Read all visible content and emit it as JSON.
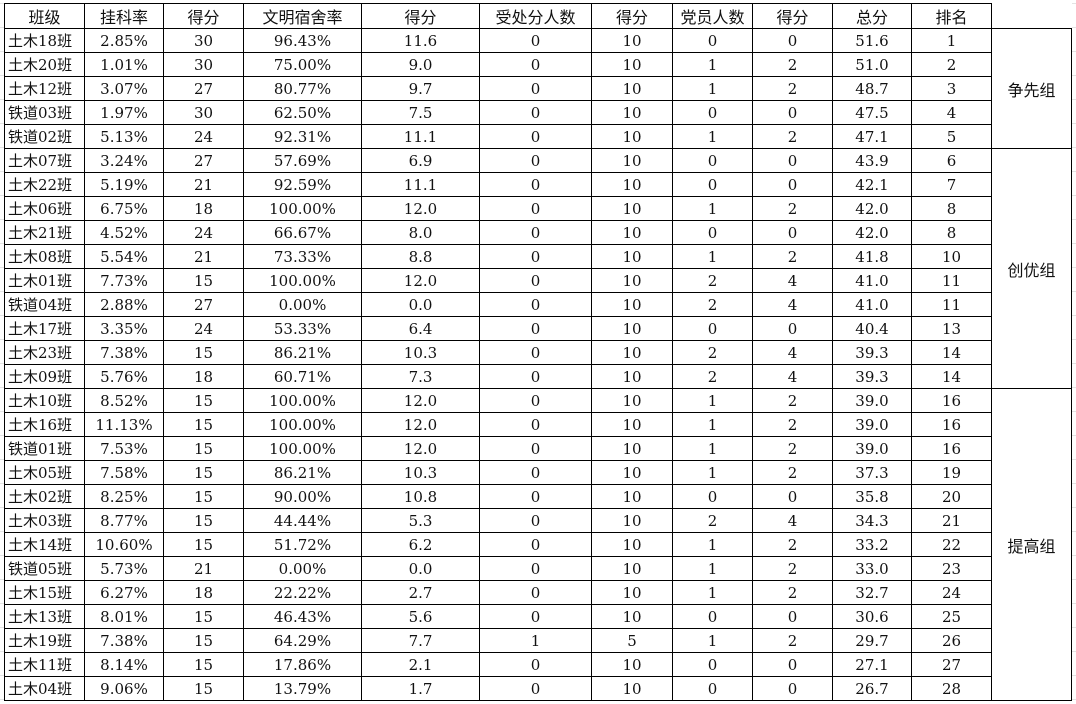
{
  "headers": [
    "班级",
    "挂科率",
    "得分",
    "文明宿舍率",
    "得分",
    "受处分人数",
    "得分",
    "党员人数",
    "得分",
    "总分",
    "排名"
  ],
  "rows": [
    [
      "土木18班",
      "2.85%",
      "30",
      "96.43%",
      "11.6",
      "0",
      "10",
      "0",
      "0",
      "51.6",
      "1"
    ],
    [
      "土木20班",
      "1.01%",
      "30",
      "75.00%",
      "9.0",
      "0",
      "10",
      "1",
      "2",
      "51.0",
      "2"
    ],
    [
      "土木12班",
      "3.07%",
      "27",
      "80.77%",
      "9.7",
      "0",
      "10",
      "1",
      "2",
      "48.7",
      "3"
    ],
    [
      "铁道03班",
      "1.97%",
      "30",
      "62.50%",
      "7.5",
      "0",
      "10",
      "0",
      "0",
      "47.5",
      "4"
    ],
    [
      "铁道02班",
      "5.13%",
      "24",
      "92.31%",
      "11.1",
      "0",
      "10",
      "1",
      "2",
      "47.1",
      "5"
    ],
    [
      "土木07班",
      "3.24%",
      "27",
      "57.69%",
      "6.9",
      "0",
      "10",
      "0",
      "0",
      "43.9",
      "6"
    ],
    [
      "土木22班",
      "5.19%",
      "21",
      "92.59%",
      "11.1",
      "0",
      "10",
      "0",
      "0",
      "42.1",
      "7"
    ],
    [
      "土木06班",
      "6.75%",
      "18",
      "100.00%",
      "12.0",
      "0",
      "10",
      "1",
      "2",
      "42.0",
      "8"
    ],
    [
      "土木21班",
      "4.52%",
      "24",
      "66.67%",
      "8.0",
      "0",
      "10",
      "0",
      "0",
      "42.0",
      "8"
    ],
    [
      "土木08班",
      "5.54%",
      "21",
      "73.33%",
      "8.8",
      "0",
      "10",
      "1",
      "2",
      "41.8",
      "10"
    ],
    [
      "土木01班",
      "7.73%",
      "15",
      "100.00%",
      "12.0",
      "0",
      "10",
      "2",
      "4",
      "41.0",
      "11"
    ],
    [
      "铁道04班",
      "2.88%",
      "27",
      "0.00%",
      "0.0",
      "0",
      "10",
      "2",
      "4",
      "41.0",
      "11"
    ],
    [
      "土木17班",
      "3.35%",
      "24",
      "53.33%",
      "6.4",
      "0",
      "10",
      "0",
      "0",
      "40.4",
      "13"
    ],
    [
      "土木23班",
      "7.38%",
      "15",
      "86.21%",
      "10.3",
      "0",
      "10",
      "2",
      "4",
      "39.3",
      "14"
    ],
    [
      "土木09班",
      "5.76%",
      "18",
      "60.71%",
      "7.3",
      "0",
      "10",
      "2",
      "4",
      "39.3",
      "14"
    ],
    [
      "土木10班",
      "8.52%",
      "15",
      "100.00%",
      "12.0",
      "0",
      "10",
      "1",
      "2",
      "39.0",
      "16"
    ],
    [
      "土木16班",
      "11.13%",
      "15",
      "100.00%",
      "12.0",
      "0",
      "10",
      "1",
      "2",
      "39.0",
      "16"
    ],
    [
      "铁道01班",
      "7.53%",
      "15",
      "100.00%",
      "12.0",
      "0",
      "10",
      "1",
      "2",
      "39.0",
      "16"
    ],
    [
      "土木05班",
      "7.58%",
      "15",
      "86.21%",
      "10.3",
      "0",
      "10",
      "1",
      "2",
      "37.3",
      "19"
    ],
    [
      "土木02班",
      "8.25%",
      "15",
      "90.00%",
      "10.8",
      "0",
      "10",
      "0",
      "0",
      "35.8",
      "20"
    ],
    [
      "土木03班",
      "8.77%",
      "15",
      "44.44%",
      "5.3",
      "0",
      "10",
      "2",
      "4",
      "34.3",
      "21"
    ],
    [
      "土木14班",
      "10.60%",
      "15",
      "51.72%",
      "6.2",
      "0",
      "10",
      "1",
      "2",
      "33.2",
      "22"
    ],
    [
      "铁道05班",
      "5.73%",
      "21",
      "0.00%",
      "0.0",
      "0",
      "10",
      "1",
      "2",
      "33.0",
      "23"
    ],
    [
      "土木15班",
      "6.27%",
      "18",
      "22.22%",
      "2.7",
      "0",
      "10",
      "1",
      "2",
      "32.7",
      "24"
    ],
    [
      "土木13班",
      "8.01%",
      "15",
      "46.43%",
      "5.6",
      "0",
      "10",
      "0",
      "0",
      "30.6",
      "25"
    ],
    [
      "土木19班",
      "7.38%",
      "15",
      "64.29%",
      "7.7",
      "1",
      "5",
      "1",
      "2",
      "29.7",
      "26"
    ],
    [
      "土木11班",
      "8.14%",
      "15",
      "17.86%",
      "2.1",
      "0",
      "10",
      "0",
      "0",
      "27.1",
      "27"
    ],
    [
      "土木04班",
      "9.06%",
      "15",
      "13.79%",
      "1.7",
      "0",
      "10",
      "0",
      "0",
      "26.7",
      "28"
    ]
  ],
  "groups": [
    {
      "label": "争先组",
      "rows": 5
    },
    {
      "label": "创优组",
      "rows": 10
    },
    {
      "label": "提高组",
      "rows": 13
    }
  ]
}
